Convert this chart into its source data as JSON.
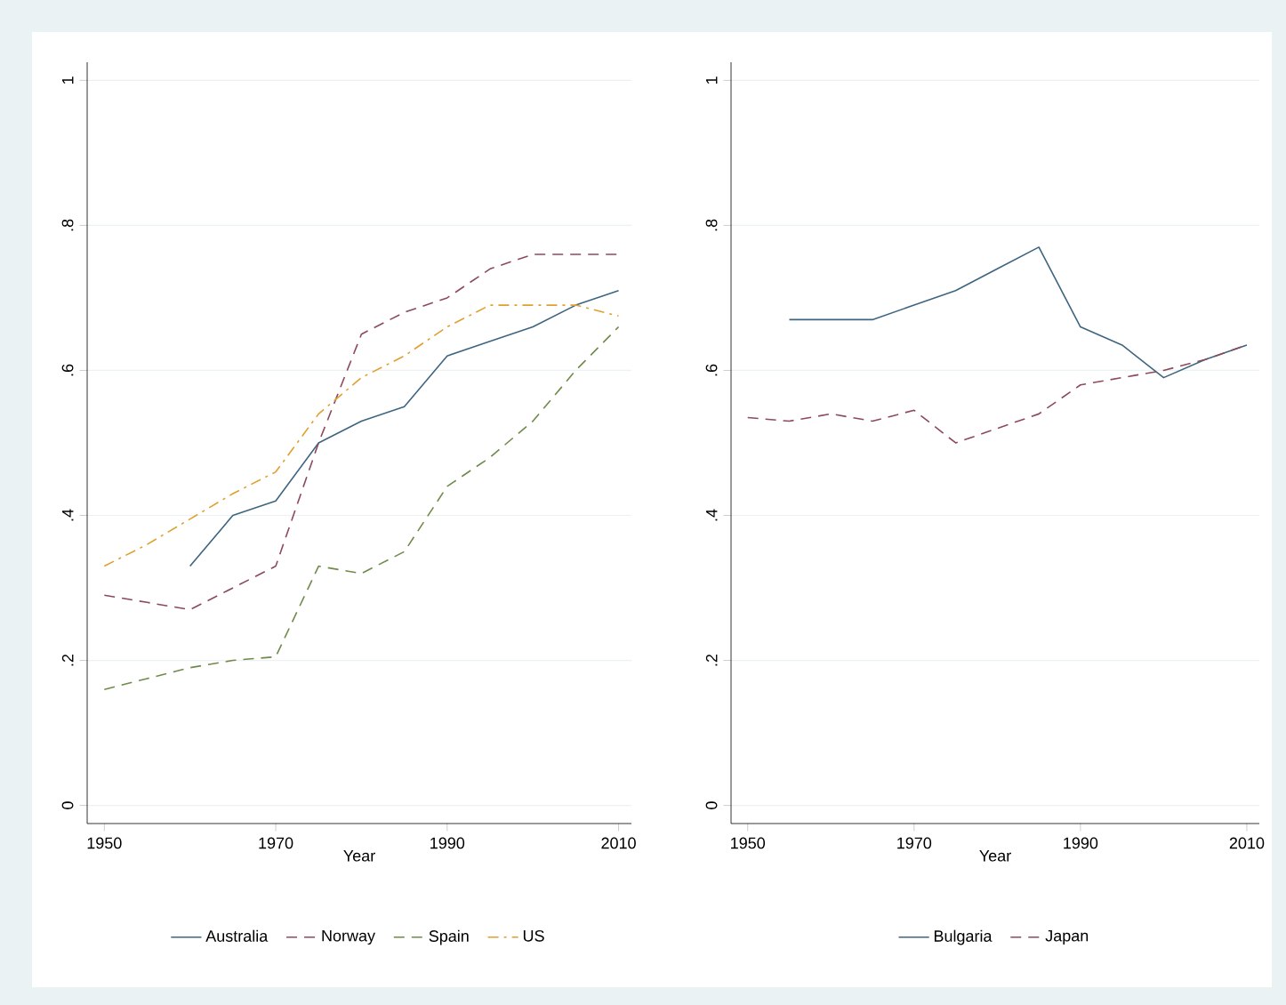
{
  "chart_data": [
    {
      "type": "line",
      "xlabel": "Year",
      "x": [
        1950,
        1955,
        1960,
        1965,
        1970,
        1975,
        1980,
        1985,
        1990,
        1995,
        2000,
        2005,
        2010
      ],
      "series": [
        {
          "name": "Australia",
          "color": "#3e6580",
          "line_style": "solid",
          "values": [
            null,
            null,
            0.33,
            0.4,
            0.42,
            0.5,
            0.53,
            0.55,
            0.62,
            0.64,
            0.66,
            0.69,
            0.71
          ]
        },
        {
          "name": "Norway",
          "color": "#8c4a5c",
          "line_style": "dashed",
          "values": [
            0.29,
            0.28,
            0.27,
            0.3,
            0.33,
            0.5,
            0.65,
            0.68,
            0.7,
            0.74,
            0.76,
            0.76,
            0.76
          ]
        },
        {
          "name": "Spain",
          "color": "#6f8a4a",
          "line_style": "dashed",
          "values": [
            0.16,
            0.175,
            0.19,
            0.2,
            0.205,
            0.33,
            0.32,
            0.35,
            0.44,
            0.48,
            0.53,
            0.6,
            0.66
          ]
        },
        {
          "name": "US",
          "color": "#e0a030",
          "line_style": "dashdot",
          "values": [
            0.33,
            0.36,
            0.395,
            0.43,
            0.46,
            0.54,
            0.59,
            0.62,
            0.66,
            0.69,
            0.69,
            0.69,
            0.675
          ]
        }
      ],
      "xlim": [
        1948,
        2011.5
      ],
      "xticks": [
        1950,
        1970,
        1990,
        2010
      ],
      "ylim": [
        -0.025,
        1.025
      ],
      "yticks": [
        0,
        {
          "value": 0.2,
          "label": ".2"
        },
        {
          "value": 0.4,
          "label": ".4"
        },
        {
          "value": 0.6,
          "label": ".6"
        },
        {
          "value": 0.8,
          "label": ".8"
        },
        1
      ],
      "grid": "y",
      "legend": "bottom",
      "marker": "none"
    },
    {
      "type": "line",
      "xlabel": "Year",
      "x": [
        1950,
        1955,
        1960,
        1965,
        1970,
        1975,
        1980,
        1985,
        1990,
        1995,
        2000,
        2005,
        2010
      ],
      "series": [
        {
          "name": "Bulgaria",
          "color": "#3e6580",
          "line_style": "solid",
          "values": [
            null,
            0.67,
            0.67,
            0.67,
            0.69,
            0.71,
            0.74,
            0.77,
            0.66,
            0.635,
            0.59,
            0.615,
            0.635
          ]
        },
        {
          "name": "Japan",
          "color": "#8c4a5c",
          "line_style": "dashed",
          "values": [
            0.535,
            0.53,
            0.54,
            0.53,
            0.545,
            0.5,
            0.52,
            0.54,
            0.58,
            0.59,
            0.6,
            0.615,
            0.635
          ]
        }
      ],
      "xlim": [
        1948,
        2011.5
      ],
      "xticks": [
        1950,
        1970,
        1990,
        2010
      ],
      "ylim": [
        -0.025,
        1.025
      ],
      "yticks": [
        0,
        {
          "value": 0.2,
          "label": ".2"
        },
        {
          "value": 0.4,
          "label": ".4"
        },
        {
          "value": 0.6,
          "label": ".6"
        },
        {
          "value": 0.8,
          "label": ".8"
        },
        1
      ],
      "grid": "y",
      "legend": "bottom",
      "marker": "none"
    }
  ]
}
